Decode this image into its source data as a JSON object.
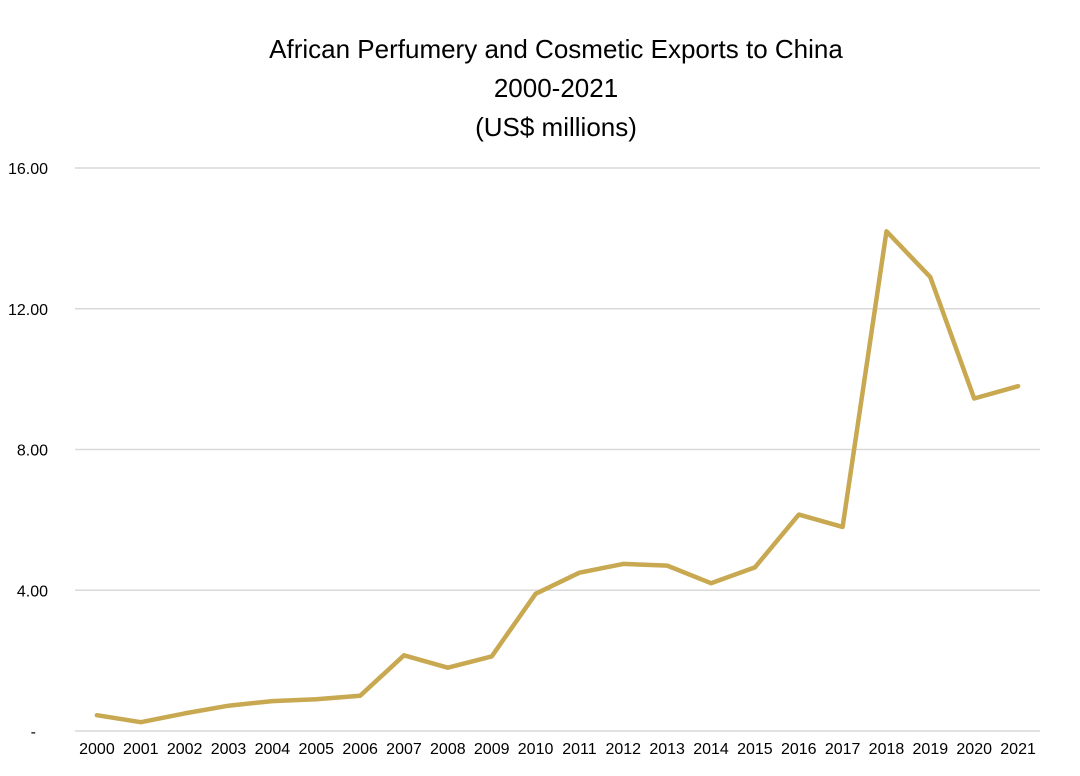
{
  "chart_data": {
    "type": "line",
    "title": "African Perfumery and Cosmetic Exports to China",
    "subtitle_lines": [
      "2000-2021",
      "(US$ millions)"
    ],
    "xlabel": "",
    "ylabel": "",
    "ylim": [
      0,
      16
    ],
    "y_ticks": [
      {
        "value": 0,
        "label": "-"
      },
      {
        "value": 4,
        "label": "4.00"
      },
      {
        "value": 8,
        "label": "8.00"
      },
      {
        "value": 12,
        "label": "12.00"
      },
      {
        "value": 16,
        "label": "16.00"
      }
    ],
    "grid": true,
    "legend": "none",
    "categories": [
      "2000",
      "2001",
      "2002",
      "2003",
      "2004",
      "2005",
      "2006",
      "2007",
      "2008",
      "2009",
      "2010",
      "2011",
      "2012",
      "2013",
      "2014",
      "2015",
      "2016",
      "2017",
      "2018",
      "2019",
      "2020",
      "2021"
    ],
    "series": [
      {
        "values": [
          0.45,
          0.25,
          0.5,
          0.72,
          0.85,
          0.9,
          1.0,
          2.15,
          1.8,
          2.12,
          3.9,
          4.5,
          4.75,
          4.7,
          4.2,
          4.65,
          6.15,
          5.8,
          14.2,
          12.9,
          9.45,
          9.8
        ],
        "color": "#c8a850"
      }
    ]
  }
}
